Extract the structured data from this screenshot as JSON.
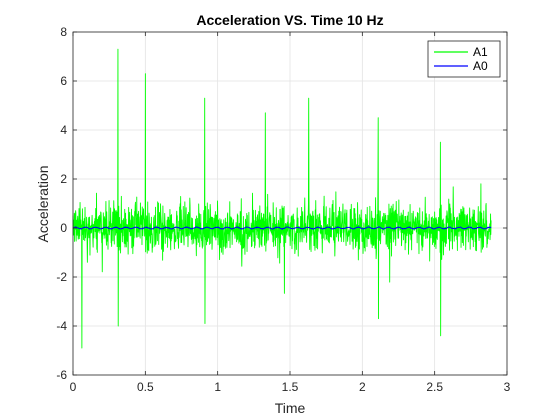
{
  "chart_data": {
    "type": "line",
    "title": "Acceleration VS. Time 10 Hz",
    "xlabel": "Time",
    "ylabel": "Acceleration",
    "xlim": [
      0,
      3
    ],
    "ylim": [
      -6,
      8
    ],
    "xticks": [
      0,
      0.5,
      1,
      1.5,
      2,
      2.5,
      3
    ],
    "yticks": [
      -6,
      -4,
      -2,
      0,
      2,
      4,
      6,
      8
    ],
    "xtick_labels": [
      "0",
      "0.5",
      "1",
      "1.5",
      "2",
      "2.5",
      "3"
    ],
    "ytick_labels": [
      "-6",
      "-4",
      "-2",
      "0",
      "2",
      "4",
      "6",
      "8"
    ],
    "grid": true,
    "legend_position": "top-right",
    "series": [
      {
        "name": "A1",
        "color": "#00ff00",
        "x_range": [
          0,
          2.89
        ],
        "typical_band": [
          -1.3,
          1.3
        ],
        "notable_peaks": [
          {
            "x": 0.06,
            "y": -4.9
          },
          {
            "x": 0.31,
            "y": 7.3
          },
          {
            "x": 0.31,
            "y": -4.0
          },
          {
            "x": 0.5,
            "y": 6.3
          },
          {
            "x": 0.91,
            "y": 5.3
          },
          {
            "x": 0.91,
            "y": -3.9
          },
          {
            "x": 1.33,
            "y": 4.7
          },
          {
            "x": 1.63,
            "y": 5.3
          },
          {
            "x": 2.11,
            "y": 4.5
          },
          {
            "x": 2.11,
            "y": -3.7
          },
          {
            "x": 2.54,
            "y": -4.4
          },
          {
            "x": 2.54,
            "y": 3.5
          }
        ]
      },
      {
        "name": "A0",
        "color": "#0000ff",
        "x_range": [
          0,
          2.89
        ],
        "typical_band": [
          -0.06,
          0.06
        ]
      }
    ]
  }
}
